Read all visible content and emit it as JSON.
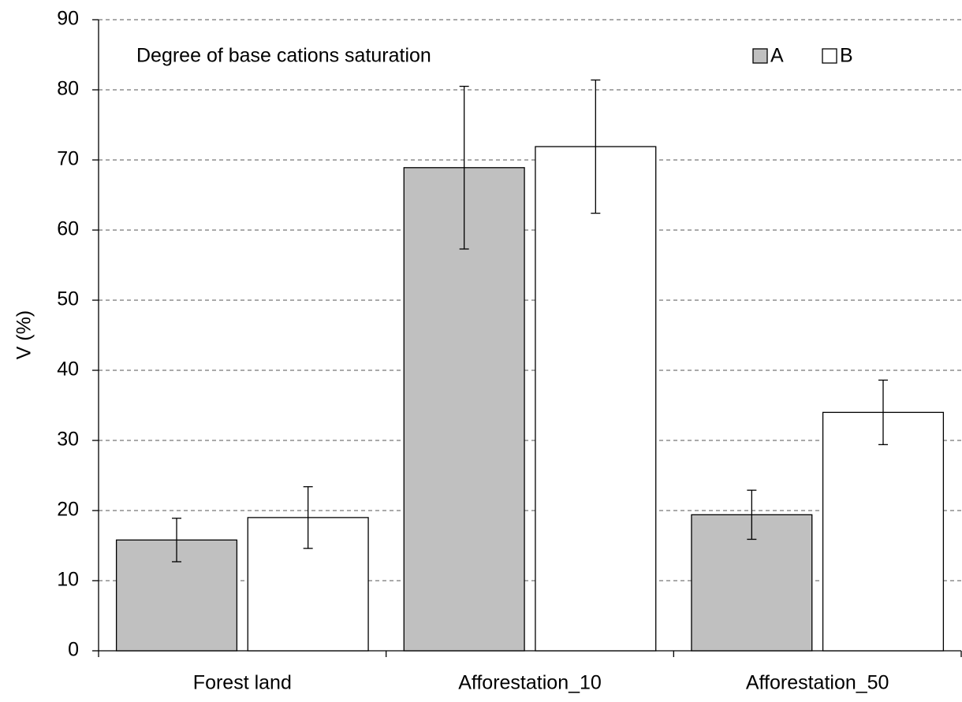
{
  "chart_data": {
    "type": "bar",
    "title": "Degree of base cations saturation",
    "y_label": "V (%)",
    "categories": [
      "Forest land",
      "Afforestation_10",
      "Afforestation_50"
    ],
    "series": [
      {
        "name": "A",
        "color": "#c0c0c0",
        "values": [
          15.8,
          68.9,
          19.4
        ],
        "errors": [
          3.1,
          11.6,
          3.5
        ]
      },
      {
        "name": "B",
        "color": "#ffffff",
        "values": [
          19.0,
          71.9,
          34.0
        ],
        "errors": [
          4.4,
          9.5,
          4.6
        ]
      }
    ],
    "ylim": [
      0,
      90
    ],
    "yticks": [
      0,
      10,
      20,
      30,
      40,
      50,
      60,
      70,
      80,
      90
    ],
    "grid": true,
    "legend": "top-right"
  }
}
